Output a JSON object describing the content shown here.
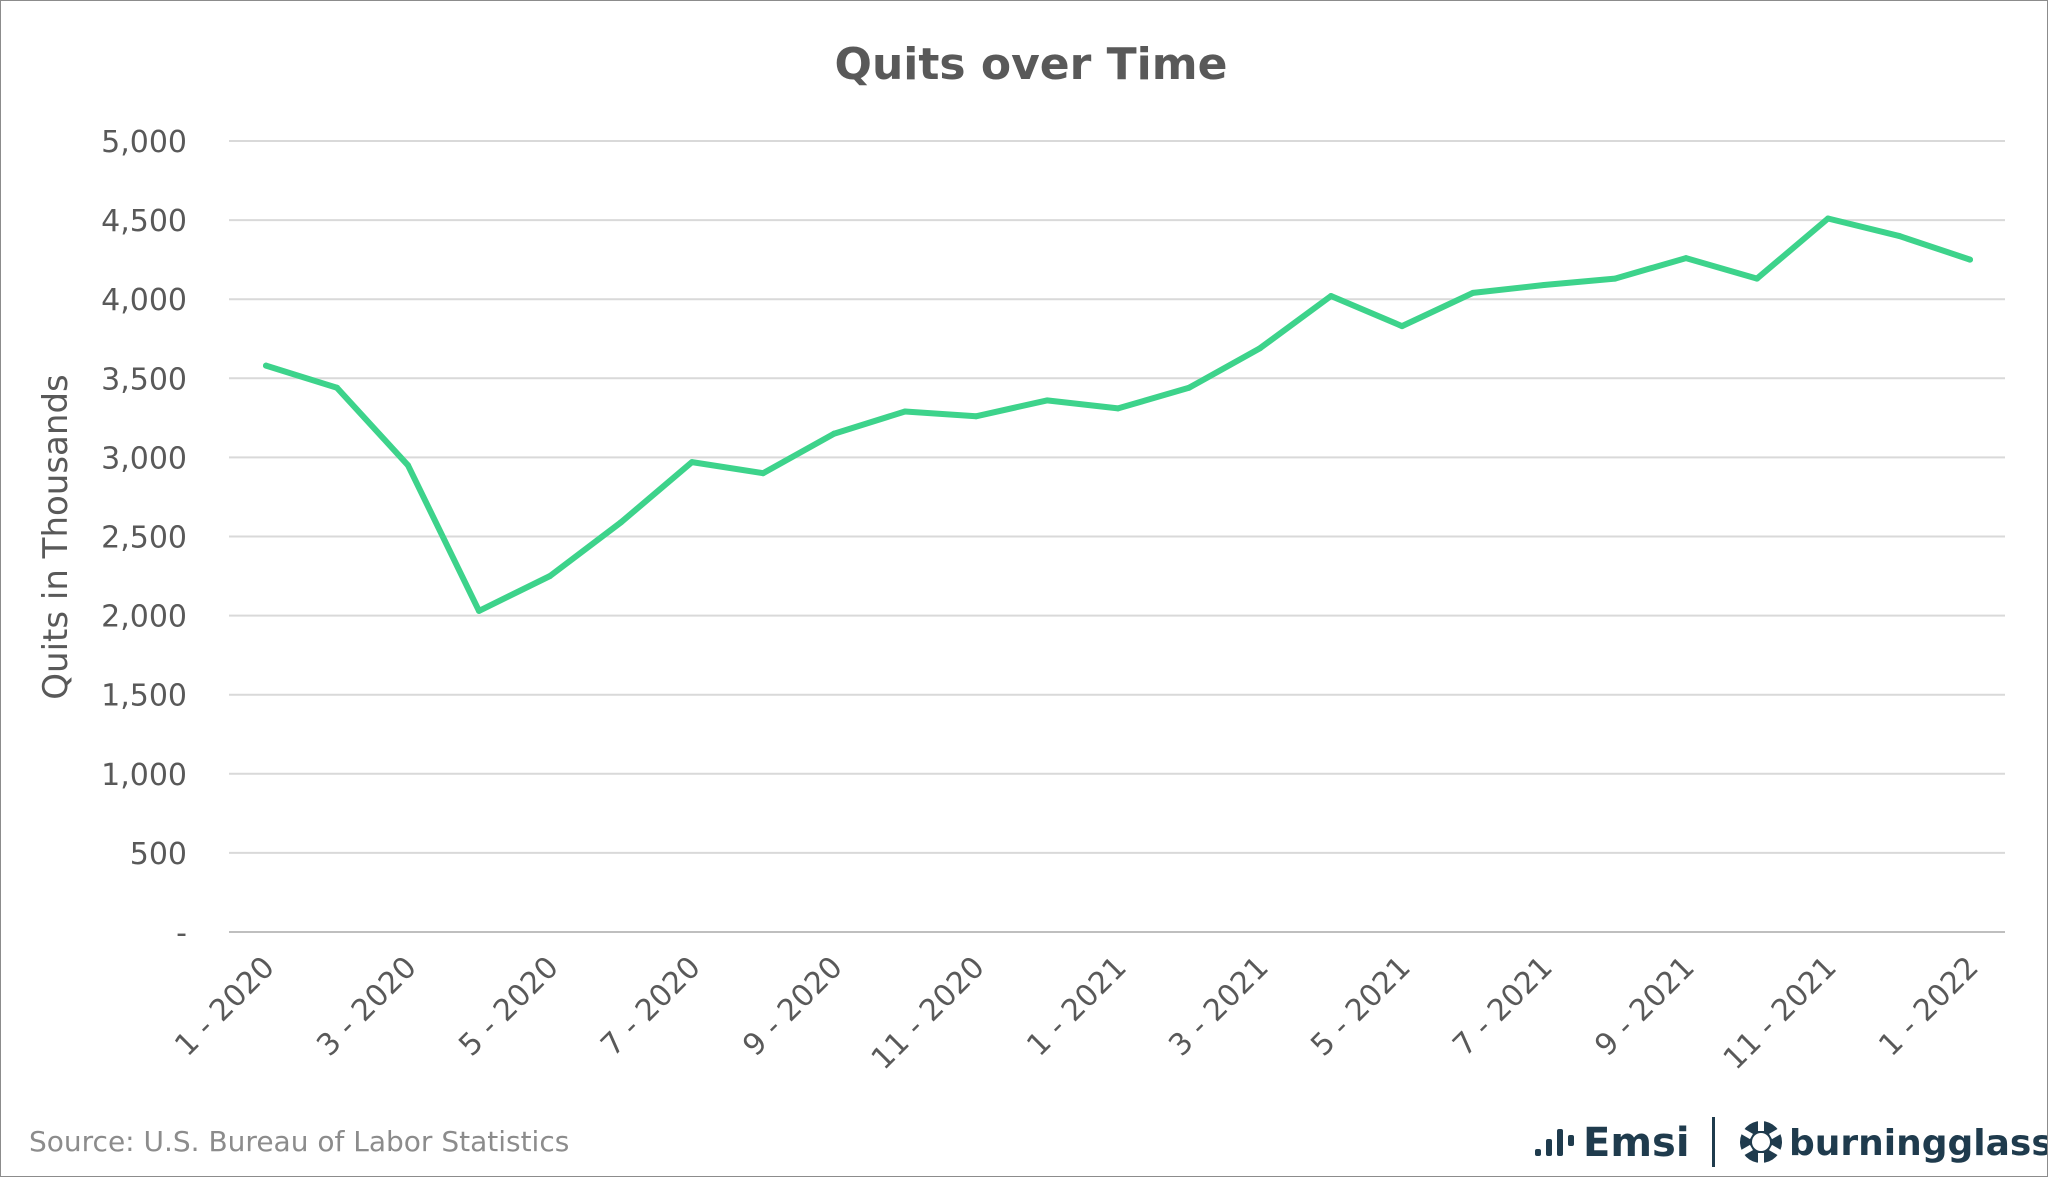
{
  "source_note": "Source:  U.S. Bureau of Labor Statistics",
  "logos": [
    "Emsi",
    "burningglass"
  ],
  "colors": {
    "line": "#3dd38b",
    "grid": "#d9d9d9",
    "text": "#595959",
    "logo": "#1f3b4d"
  },
  "chart_data": {
    "type": "line",
    "title": "Quits over Time",
    "xlabel": "",
    "ylabel": "Quits in Thousands",
    "ylim": [
      0,
      5000
    ],
    "yticks": [
      0,
      500,
      1000,
      1500,
      2000,
      2500,
      3000,
      3500,
      4000,
      4500,
      5000
    ],
    "ytick_labels": [
      "-",
      "500",
      "1,000",
      "1,500",
      "2,000",
      "2,500",
      "3,000",
      "3,500",
      "4,000",
      "4,500",
      "5,000"
    ],
    "grid": true,
    "legend": "none",
    "categories": [
      "1 - 2020",
      "2 - 2020",
      "3 - 2020",
      "4 - 2020",
      "5 - 2020",
      "6 - 2020",
      "7 - 2020",
      "8 - 2020",
      "9 - 2020",
      "10 - 2020",
      "11 - 2020",
      "12 - 2020",
      "1 - 2021",
      "2 - 2021",
      "3 - 2021",
      "4 - 2021",
      "5 - 2021",
      "6 - 2021",
      "7 - 2021",
      "8 - 2021",
      "9 - 2021",
      "10 - 2021",
      "11 - 2021",
      "12 - 2021",
      "1 - 2022"
    ],
    "tick_labels_shown": [
      "1 - 2020",
      "3 - 2020",
      "5 - 2020",
      "7 - 2020",
      "9 - 2020",
      "11 - 2020",
      "1 - 2021",
      "3 - 2021",
      "5 - 2021",
      "7 - 2021",
      "9 - 2021",
      "11 - 2021",
      "1 - 2022"
    ],
    "series": [
      {
        "values": [
          3580,
          3440,
          2950,
          2030,
          2250,
          2590,
          2970,
          2900,
          3150,
          3290,
          3260,
          3360,
          3310,
          3440,
          3690,
          4020,
          3830,
          4040,
          4090,
          4130,
          4260,
          4130,
          4510,
          4400,
          4250
        ]
      }
    ]
  }
}
